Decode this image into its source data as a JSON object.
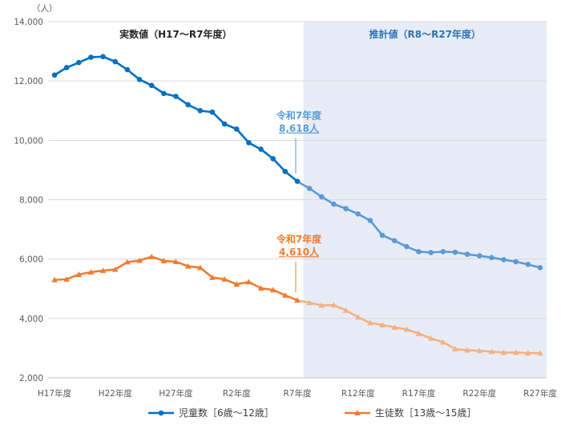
{
  "chart_data": {
    "type": "line",
    "unit_label": "（人）",
    "x": [
      "H17年度",
      "H18年度",
      "H19年度",
      "H20年度",
      "H21年度",
      "H22年度",
      "H23年度",
      "H24年度",
      "H25年度",
      "H26年度",
      "H27年度",
      "H28年度",
      "H29年度",
      "H30年度",
      "R1年度",
      "R2年度",
      "R3年度",
      "R4年度",
      "R5年度",
      "R6年度",
      "R7年度",
      "R8年度",
      "R9年度",
      "R10年度",
      "R11年度",
      "R12年度",
      "R13年度",
      "R14年度",
      "R15年度",
      "R16年度",
      "R17年度",
      "R18年度",
      "R19年度",
      "R20年度",
      "R21年度",
      "R22年度",
      "R23年度",
      "R24年度",
      "R25年度",
      "R26年度",
      "R27年度"
    ],
    "x_tick_labels": [
      "H17年度",
      "H22年度",
      "H27年度",
      "R2年度",
      "R7年度",
      "R12年度",
      "R17年度",
      "R22年度",
      "R27年度"
    ],
    "ylim": [
      2000,
      14000
    ],
    "y_ticks": [
      "2,000",
      "4,000",
      "6,000",
      "8,000",
      "10,000",
      "12,000",
      "14,000"
    ],
    "grid": true,
    "legend_position": "bottom",
    "regions": [
      {
        "label": "実数値（H17～R7年度）",
        "from": "H17年度",
        "to": "R7年度",
        "shaded": false
      },
      {
        "label": "推計値（R8～R27年度）",
        "from": "R8年度",
        "to": "R27年度",
        "shaded": true
      }
    ],
    "series": [
      {
        "name": "児童数［6歳～12歳］",
        "marker": "circle",
        "color": "#0070c0",
        "projected_color": "#5b9bd5",
        "values": [
          12200,
          12450,
          12620,
          12800,
          12820,
          12650,
          12380,
          12050,
          11850,
          11580,
          11480,
          11200,
          11000,
          10950,
          10550,
          10380,
          9920,
          9700,
          9380,
          8950,
          8618,
          8380,
          8100,
          7850,
          7700,
          7520,
          7300,
          6800,
          6620,
          6420,
          6250,
          6220,
          6250,
          6230,
          6160,
          6110,
          6050,
          5980,
          5910,
          5820,
          5710
        ]
      },
      {
        "name": "生徒数［13歳～15歳］",
        "marker": "triangle",
        "color": "#ed7d31",
        "projected_color": "#f4b183",
        "values": [
          5300,
          5320,
          5480,
          5560,
          5610,
          5650,
          5900,
          5950,
          6080,
          5940,
          5910,
          5760,
          5710,
          5380,
          5320,
          5150,
          5230,
          5020,
          4960,
          4780,
          4610,
          4530,
          4440,
          4450,
          4270,
          4040,
          3850,
          3780,
          3700,
          3630,
          3490,
          3330,
          3200,
          2970,
          2930,
          2910,
          2880,
          2850,
          2850,
          2830,
          2830
        ]
      }
    ],
    "annotations": [
      {
        "series": 0,
        "x": "R7年度",
        "line1": "令和7年度",
        "line2": "8,618人",
        "color": "#5b9bd5"
      },
      {
        "series": 1,
        "x": "R7年度",
        "line1": "令和7年度",
        "line2": "4,610人",
        "color": "#ed7d31"
      }
    ]
  }
}
